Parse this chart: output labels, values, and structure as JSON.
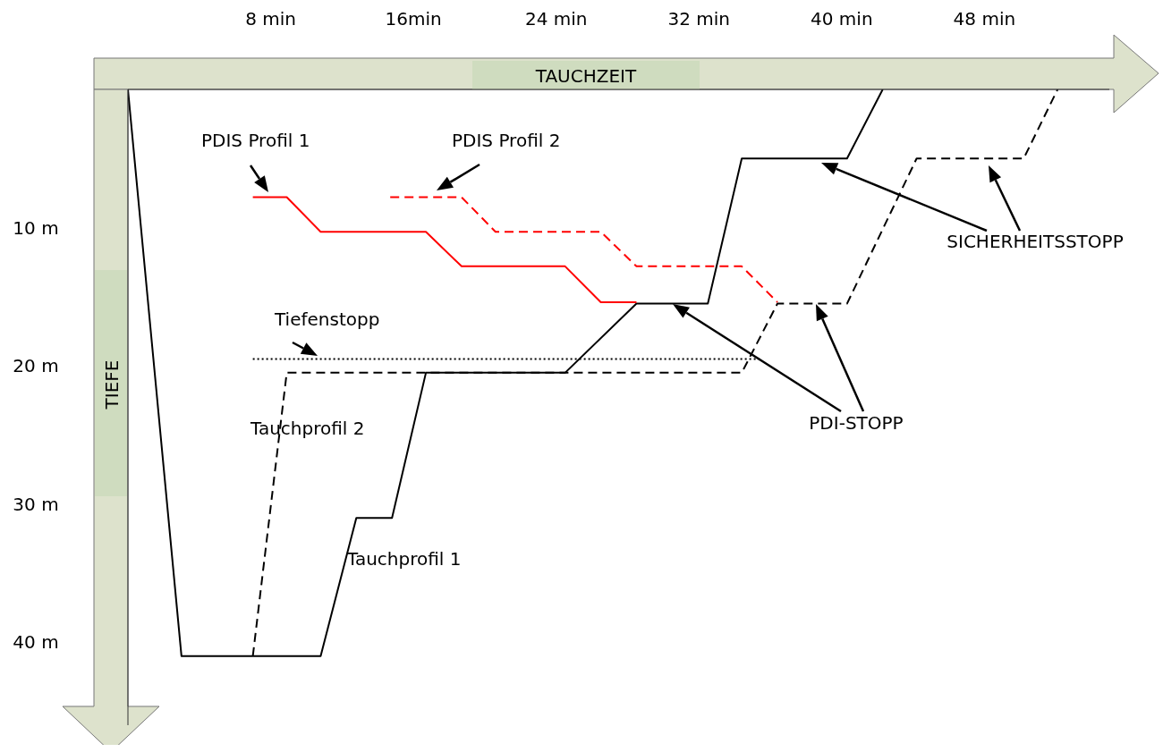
{
  "chart_data": {
    "type": "line",
    "xlabel": "TAUCHZEIT",
    "ylabel": "TIEFE",
    "xlim": [
      0,
      55
    ],
    "ylim": [
      46,
      0
    ],
    "xticks": [
      {
        "value": 8,
        "label": "8 min"
      },
      {
        "value": 16,
        "label": "16min"
      },
      {
        "value": 24,
        "label": "24 min"
      },
      {
        "value": 32,
        "label": "32 min"
      },
      {
        "value": 40,
        "label": "40 min"
      },
      {
        "value": 48,
        "label": "48 min"
      }
    ],
    "yticks": [
      {
        "value": 10,
        "label": "10 m"
      },
      {
        "value": 20,
        "label": "20 m"
      },
      {
        "value": 30,
        "label": "30 m"
      },
      {
        "value": 40,
        "label": "40 m"
      }
    ],
    "marker": "none",
    "series": [
      {
        "name": "Tauchprofil 1",
        "color": "#000000",
        "line_style": "solid",
        "x": [
          0,
          3,
          10.8,
          12.8,
          14.8,
          16.7,
          24.5,
          28.5,
          32.5,
          34.4,
          40.3,
          42.3
        ],
        "values": [
          0,
          41,
          41,
          31,
          31,
          20.5,
          20.5,
          15.5,
          15.5,
          5,
          5,
          0
        ]
      },
      {
        "name": "Tauchprofil 2",
        "color": "#000000",
        "line_style": "dashed",
        "x": [
          7,
          8.9,
          34.4,
          36.4,
          40.3,
          44.2,
          50.2,
          52.1
        ],
        "values": [
          41,
          20.5,
          20.5,
          15.5,
          15.5,
          5,
          5,
          0
        ]
      },
      {
        "name": "PDIS Profil 1",
        "color": "#ff0000",
        "line_style": "solid",
        "x": [
          7,
          8.9,
          10.8,
          16.7,
          18.7,
          24.5,
          26.5,
          28.5
        ],
        "values": [
          7.8,
          7.8,
          10.3,
          10.3,
          12.8,
          12.8,
          15.4,
          15.4
        ]
      },
      {
        "name": "PDIS Profil 2",
        "color": "#ff0000",
        "line_style": "dashed",
        "x": [
          14.7,
          18.7,
          20.6,
          26.5,
          28.5,
          34.4,
          36.4
        ],
        "values": [
          7.8,
          7.8,
          10.3,
          10.3,
          12.8,
          12.8,
          15.4
        ]
      },
      {
        "name": "Tiefenstopp",
        "color": "#000000",
        "line_style": "dotted",
        "x": [
          7,
          35.4
        ],
        "values": [
          19.5,
          19.5
        ]
      }
    ],
    "annotations": [
      "PDI-STOPP",
      "SICHERHEITSSTOPP"
    ]
  }
}
